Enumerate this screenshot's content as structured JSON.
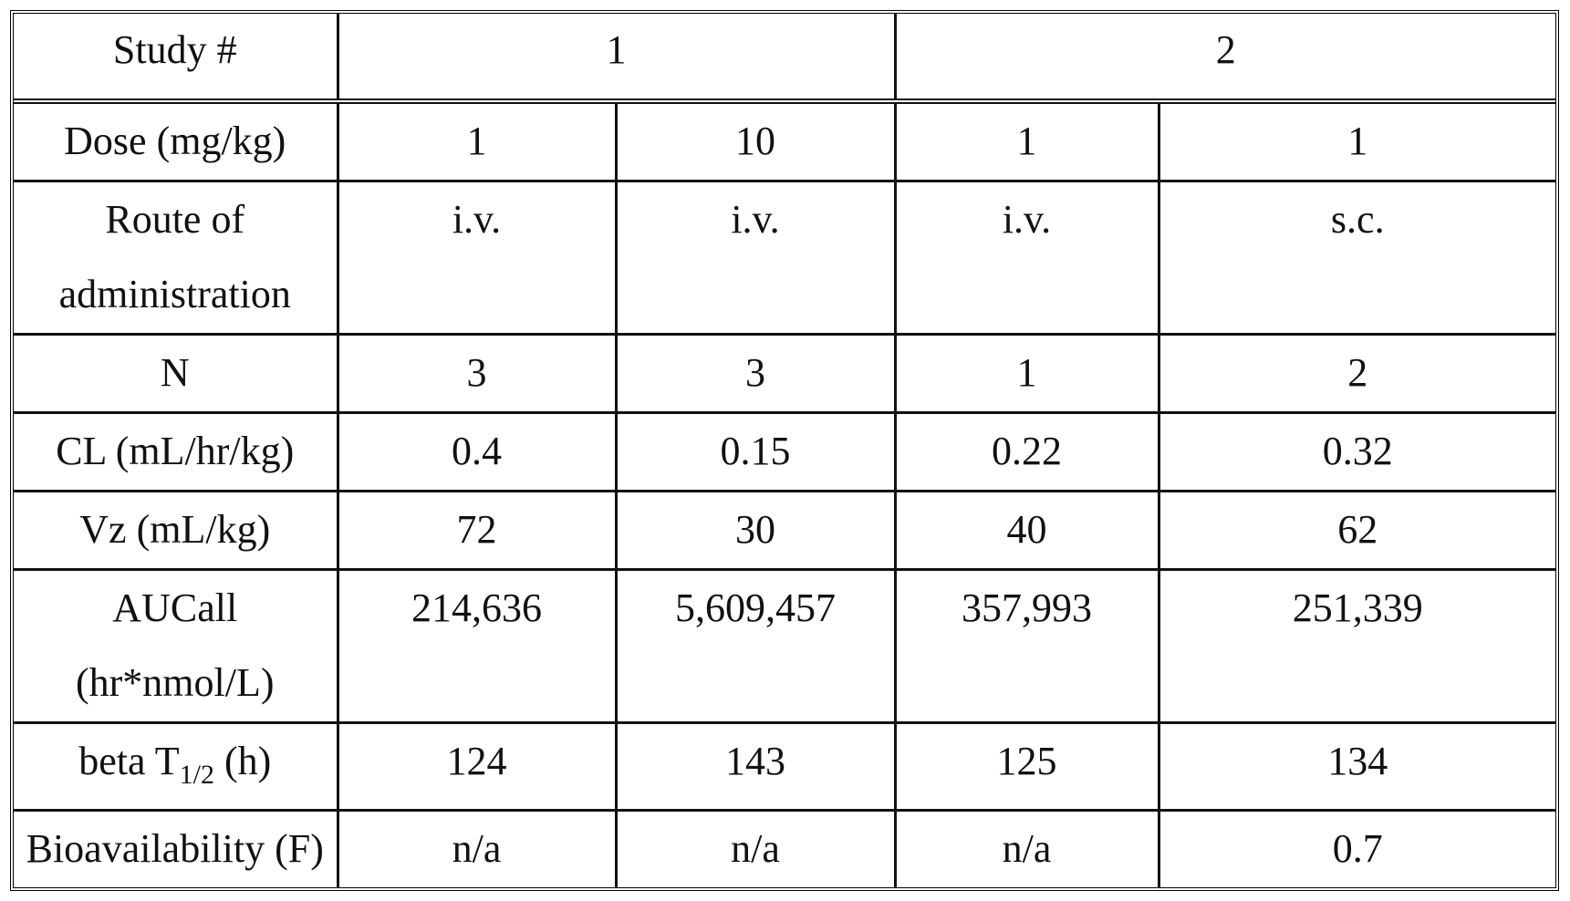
{
  "table": {
    "header": {
      "label": "Study #",
      "study1": "1",
      "study2": "2"
    },
    "rows": [
      {
        "label": "Dose (mg/kg)",
        "values": [
          "1",
          "10",
          "1",
          "1"
        ]
      },
      {
        "label_line1": "Route of",
        "label_line2": "administration",
        "values": [
          "i.v.",
          "i.v.",
          "i.v.",
          "s.c."
        ]
      },
      {
        "label": "N",
        "values": [
          "3",
          "3",
          "1",
          "2"
        ]
      },
      {
        "label": "CL (mL/hr/kg)",
        "values": [
          "0.4",
          "0.15",
          "0.22",
          "0.32"
        ]
      },
      {
        "label": "Vz (mL/kg)",
        "values": [
          "72",
          "30",
          "40",
          "62"
        ]
      },
      {
        "label_line1": "AUCall",
        "label_line2": "(hr*nmol/L)",
        "values": [
          "214,636",
          "5,609,457",
          "357,993",
          "251,339"
        ]
      },
      {
        "label_prefix": "beta T",
        "label_sub": "1/2",
        "label_suffix": " (h)",
        "values": [
          "124",
          "143",
          "125",
          "134"
        ]
      },
      {
        "label": "Bioavailability (F)",
        "values": [
          "n/a",
          "n/a",
          "n/a",
          "0.7"
        ]
      }
    ]
  }
}
